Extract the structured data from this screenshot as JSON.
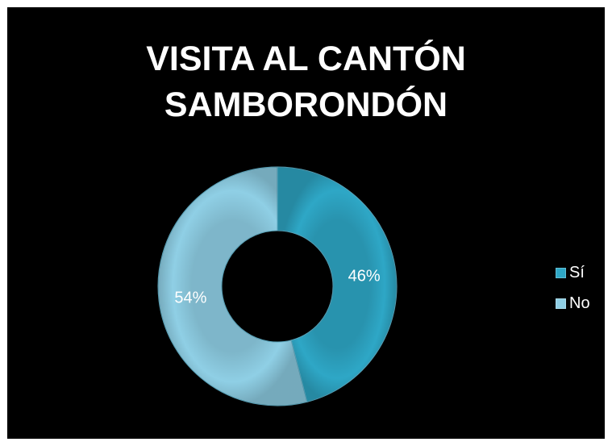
{
  "chart_data": {
    "type": "pie",
    "title": [
      "VISITA AL CANTÓN",
      "SAMBORONDÓN"
    ],
    "categories": [
      "Sí",
      "No"
    ],
    "values": [
      46,
      54
    ],
    "labels": [
      "46%",
      "54%"
    ],
    "colors": [
      "#2ea7c6",
      "#8fcfe5"
    ],
    "donut": true,
    "legend_position": "right",
    "background": "#000000"
  }
}
